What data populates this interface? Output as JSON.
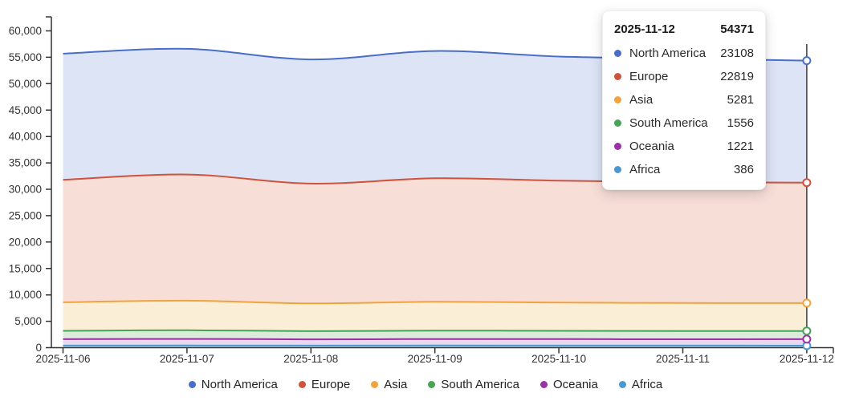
{
  "chart_data": {
    "type": "area",
    "stacked": true,
    "title": "",
    "xlabel": "",
    "ylabel": "",
    "x": [
      "2025-11-06",
      "2025-11-07",
      "2025-11-08",
      "2025-11-09",
      "2025-11-10",
      "2025-11-11",
      "2025-11-12"
    ],
    "series": [
      {
        "name": "North America",
        "color": "#4a6dc9",
        "fill": "#dde4f6",
        "values": [
          23900,
          23800,
          23500,
          24100,
          23500,
          23400,
          23108
        ]
      },
      {
        "name": "Europe",
        "color": "#d1523c",
        "fill": "#f7ded7",
        "values": [
          23200,
          23900,
          22700,
          23400,
          23100,
          22900,
          22819
        ]
      },
      {
        "name": "Asia",
        "color": "#f2a33c",
        "fill": "#fbeed6",
        "values": [
          5400,
          5600,
          5250,
          5450,
          5350,
          5300,
          5281
        ]
      },
      {
        "name": "South America",
        "color": "#47a355",
        "fill": "#dcecdb",
        "values": [
          1580,
          1640,
          1550,
          1600,
          1570,
          1560,
          1556
        ]
      },
      {
        "name": "Oceania",
        "color": "#9d2fa8",
        "fill": "#ead8ee",
        "values": [
          1210,
          1250,
          1190,
          1230,
          1220,
          1210,
          1221
        ]
      },
      {
        "name": "Africa",
        "color": "#4998d3",
        "fill": "#c9ddf0",
        "values": [
          400,
          410,
          395,
          405,
          400,
          390,
          386
        ]
      }
    ],
    "ylim": [
      0,
      60000
    ],
    "y_ticks": [
      0,
      5000,
      10000,
      15000,
      20000,
      25000,
      30000,
      35000,
      40000,
      45000,
      50000,
      55000,
      60000
    ],
    "y_tick_labels": [
      "0",
      "5,000",
      "10,000",
      "15,000",
      "20,000",
      "25,000",
      "30,000",
      "35,000",
      "40,000",
      "45,000",
      "50,000",
      "55,000",
      "60,000"
    ],
    "grid": false,
    "legend_position": "bottom",
    "hovered_x": "2025-11-12"
  },
  "tooltip": {
    "date": "2025-11-12",
    "total": "54371",
    "rows": [
      {
        "label": "North America",
        "value": "23108"
      },
      {
        "label": "Europe",
        "value": "22819"
      },
      {
        "label": "Asia",
        "value": "5281"
      },
      {
        "label": "South America",
        "value": "1556"
      },
      {
        "label": "Oceania",
        "value": "1221"
      },
      {
        "label": "Africa",
        "value": "386"
      }
    ]
  },
  "legend": {
    "items": [
      "North America",
      "Europe",
      "Asia",
      "South America",
      "Oceania",
      "Africa"
    ]
  }
}
